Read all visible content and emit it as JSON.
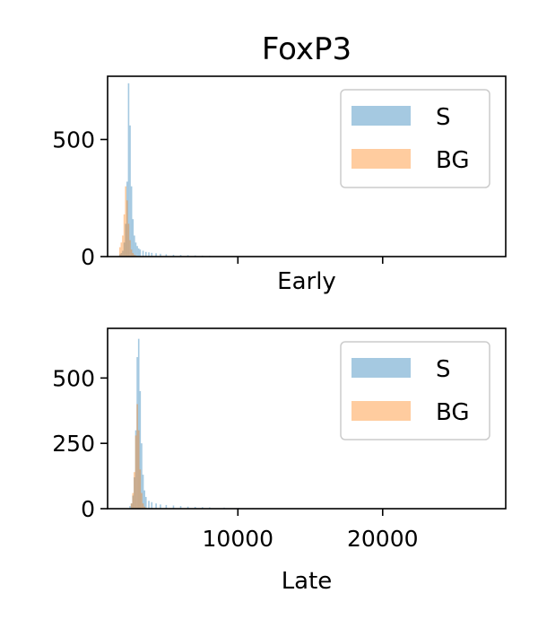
{
  "chart_data": [
    {
      "type": "bar",
      "subtype": "histogram",
      "title": "FoxP3",
      "xlabel": "Early",
      "ylabel": "",
      "xlim": [
        1000,
        28500
      ],
      "ylim": [
        0,
        770
      ],
      "xticks": [
        10000,
        20000
      ],
      "xticks_labeled": false,
      "yticks": [
        0,
        500
      ],
      "grid": false,
      "legend": {
        "placement": "top-right",
        "entries": [
          "S",
          "BG"
        ]
      },
      "series": [
        {
          "name": "S",
          "color": "#1f77b4",
          "opacity": 0.4,
          "bins": [
            [
              1800,
              10
            ],
            [
              1900,
              15
            ],
            [
              2000,
              25
            ],
            [
              2100,
              60
            ],
            [
              2200,
              140
            ],
            [
              2300,
              320
            ],
            [
              2400,
              740
            ],
            [
              2500,
              560
            ],
            [
              2600,
              300
            ],
            [
              2700,
              160
            ],
            [
              2800,
              90
            ],
            [
              2900,
              60
            ],
            [
              3000,
              45
            ],
            [
              3100,
              35
            ],
            [
              3200,
              30
            ],
            [
              3400,
              25
            ],
            [
              3600,
              20
            ],
            [
              3800,
              18
            ],
            [
              4000,
              16
            ],
            [
              4300,
              14
            ],
            [
              4600,
              12
            ],
            [
              5000,
              10
            ],
            [
              5500,
              8
            ],
            [
              6000,
              7
            ],
            [
              6500,
              6
            ],
            [
              7000,
              5
            ],
            [
              7500,
              4
            ],
            [
              8000,
              3
            ],
            [
              9000,
              2
            ],
            [
              10000,
              1
            ],
            [
              11000,
              1
            ]
          ]
        },
        {
          "name": "BG",
          "color": "#ff7f0e",
          "opacity": 0.4,
          "bins": [
            [
              1800,
              40
            ],
            [
              1900,
              60
            ],
            [
              2000,
              90
            ],
            [
              2100,
              180
            ],
            [
              2200,
              300
            ],
            [
              2300,
              240
            ],
            [
              2400,
              140
            ],
            [
              2500,
              70
            ],
            [
              2600,
              30
            ],
            [
              2700,
              15
            ],
            [
              2800,
              8
            ],
            [
              2900,
              5
            ],
            [
              3000,
              3
            ]
          ]
        }
      ]
    },
    {
      "type": "bar",
      "subtype": "histogram",
      "title": "",
      "xlabel": "Late",
      "ylabel": "",
      "xlim": [
        1000,
        28500
      ],
      "ylim": [
        0,
        690
      ],
      "xticks": [
        10000,
        20000
      ],
      "xticks_labeled": true,
      "yticks": [
        0,
        250,
        500
      ],
      "grid": false,
      "legend": {
        "placement": "top-right",
        "entries": [
          "S",
          "BG"
        ]
      },
      "series": [
        {
          "name": "S",
          "color": "#1f77b4",
          "opacity": 0.4,
          "bins": [
            [
              2500,
              10
            ],
            [
              2600,
              20
            ],
            [
              2700,
              50
            ],
            [
              2800,
              120
            ],
            [
              2900,
              300
            ],
            [
              3000,
              580
            ],
            [
              3100,
              650
            ],
            [
              3200,
              450
            ],
            [
              3300,
              250
            ],
            [
              3400,
              130
            ],
            [
              3500,
              70
            ],
            [
              3600,
              45
            ],
            [
              3800,
              30
            ],
            [
              4000,
              25
            ],
            [
              4300,
              20
            ],
            [
              4600,
              16
            ],
            [
              5000,
              14
            ],
            [
              5500,
              12
            ],
            [
              6000,
              10
            ],
            [
              6500,
              8
            ],
            [
              7000,
              7
            ],
            [
              7500,
              6
            ],
            [
              8000,
              5
            ],
            [
              9000,
              4
            ],
            [
              10000,
              3
            ],
            [
              11000,
              2
            ],
            [
              12000,
              1
            ]
          ]
        },
        {
          "name": "BG",
          "color": "#ff7f0e",
          "opacity": 0.4,
          "bins": [
            [
              2600,
              20
            ],
            [
              2700,
              60
            ],
            [
              2800,
              140
            ],
            [
              2900,
              280
            ],
            [
              3000,
              400
            ],
            [
              3100,
              300
            ],
            [
              3200,
              150
            ],
            [
              3300,
              60
            ],
            [
              3400,
              20
            ],
            [
              3500,
              8
            ],
            [
              3600,
              3
            ]
          ]
        }
      ]
    }
  ]
}
